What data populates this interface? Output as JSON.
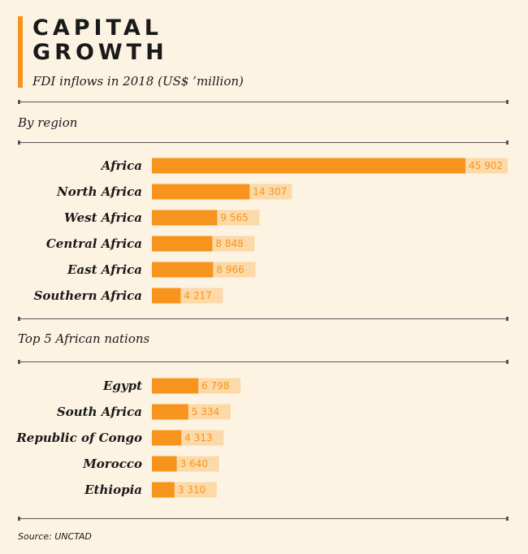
{
  "header": {
    "title_line1": "CAPITAL",
    "title_line2": "GROWTH",
    "subtitle": "FDI inflows in 2018 (US$ ’million)"
  },
  "colors": {
    "bar": "#f7941d",
    "label_bg": "#fcd9a8",
    "value_text": "#f7941d",
    "background": "#fdf3e3"
  },
  "chart_data": [
    {
      "type": "bar",
      "orientation": "horizontal",
      "title": "By region",
      "categories": [
        "Africa",
        "North Africa",
        "West Africa",
        "Central Africa",
        "East Africa",
        "Southern Africa"
      ],
      "values": [
        45902,
        14307,
        9565,
        8848,
        8966,
        4217
      ],
      "value_labels": [
        "45 902",
        "14 307",
        "9 565",
        "8 848",
        "8 966",
        "4 217"
      ],
      "unit": "US$ million",
      "xlim": [
        0,
        45902
      ]
    },
    {
      "type": "bar",
      "orientation": "horizontal",
      "title": "Top 5 African nations",
      "categories": [
        "Egypt",
        "South Africa",
        "Republic of Congo",
        "Morocco",
        "Ethiopia"
      ],
      "values": [
        6798,
        5334,
        4313,
        3640,
        3310
      ],
      "value_labels": [
        "6 798",
        "5 334",
        "4 313",
        "3 640",
        "3 310"
      ],
      "unit": "US$ million",
      "xlim": [
        0,
        45902
      ]
    }
  ],
  "footer": {
    "source": "Source: UNCTAD"
  }
}
